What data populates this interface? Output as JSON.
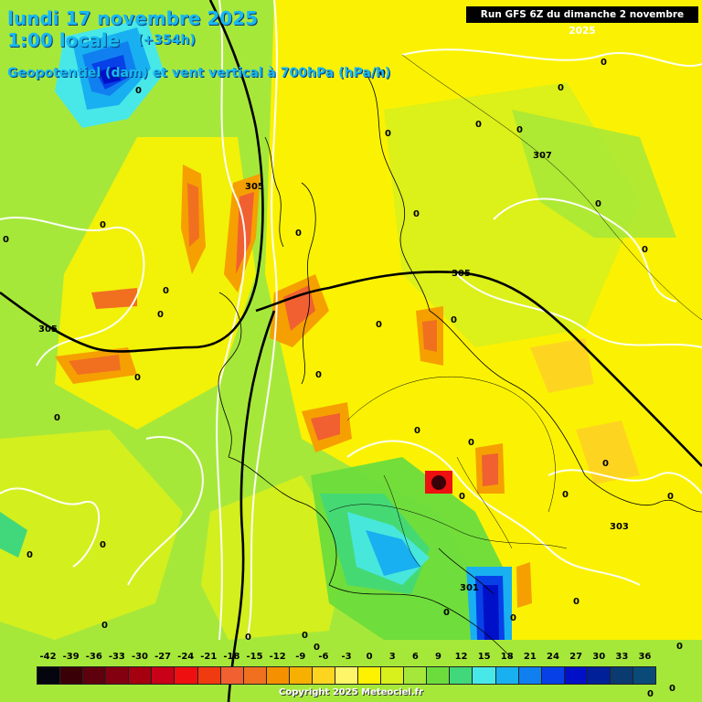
{
  "header": {
    "date": "lundi 17 novembre 2025",
    "time": "1:00 locale",
    "lead": "(+354h)",
    "field": "Geopotentiel (dam) et vent vertical à 700hPa (hPa/h)",
    "run": "Run GFS 6Z du dimanche 2 novembre 2025"
  },
  "legend": {
    "labels": [
      "-42",
      "-39",
      "-36",
      "-33",
      "-30",
      "-27",
      "-24",
      "-21",
      "-18",
      "-15",
      "-12",
      "-9",
      "-6",
      "-3",
      "0",
      "3",
      "6",
      "9",
      "12",
      "15",
      "18",
      "21",
      "24",
      "27",
      "30",
      "33",
      "36"
    ],
    "colors": [
      "#05050f",
      "#3a0008",
      "#5e000e",
      "#820010",
      "#a40010",
      "#c80018",
      "#ee1010",
      "#f03a10",
      "#f06030",
      "#f07020",
      "#f59000",
      "#f8b000",
      "#fdd520",
      "#fff568",
      "#fff200",
      "#d8f01c",
      "#a6e83a",
      "#6cdc3c",
      "#40d87a",
      "#48e8e8",
      "#18b0f0",
      "#1080f0",
      "#0840e8",
      "#0010c8",
      "#00209a",
      "#0a3a70",
      "#0a4a78"
    ]
  },
  "contours": [
    "305",
    "307",
    "305",
    "305",
    "303",
    "301"
  ],
  "zero_labels": [
    "0",
    "0",
    "0",
    "0",
    "0",
    "0",
    "0",
    "0",
    "0",
    "0",
    "0",
    "0",
    "0",
    "0",
    "0",
    "0",
    "0",
    "0",
    "0",
    "0",
    "0",
    "0",
    "0",
    "0",
    "0",
    "0",
    "0",
    "0",
    "0",
    "0",
    "0",
    "0",
    "0",
    "0",
    "0",
    "0",
    "0",
    "0"
  ],
  "copyright": "Copyright 2025 Meteociel.fr"
}
